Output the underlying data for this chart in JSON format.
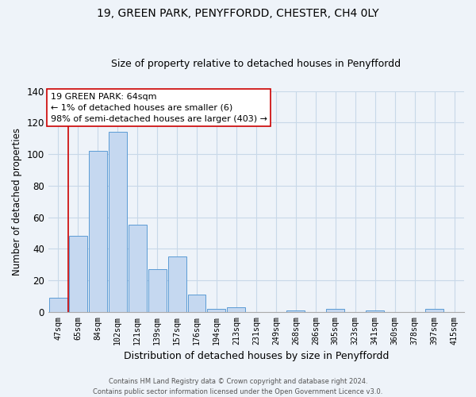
{
  "title": "19, GREEN PARK, PENYFFORDD, CHESTER, CH4 0LY",
  "subtitle": "Size of property relative to detached houses in Penyffordd",
  "xlabel": "Distribution of detached houses by size in Penyffordd",
  "ylabel": "Number of detached properties",
  "bar_labels": [
    "47sqm",
    "65sqm",
    "84sqm",
    "102sqm",
    "121sqm",
    "139sqm",
    "157sqm",
    "176sqm",
    "194sqm",
    "213sqm",
    "231sqm",
    "249sqm",
    "268sqm",
    "286sqm",
    "305sqm",
    "323sqm",
    "341sqm",
    "360sqm",
    "378sqm",
    "397sqm",
    "415sqm"
  ],
  "bar_values": [
    9,
    48,
    102,
    114,
    55,
    27,
    35,
    11,
    2,
    3,
    0,
    0,
    1,
    0,
    2,
    0,
    1,
    0,
    0,
    2,
    0
  ],
  "bar_color": "#c5d8f0",
  "bar_edge_color": "#5b9bd5",
  "highlight_color": "#cc0000",
  "ylim": [
    0,
    140
  ],
  "yticks": [
    0,
    20,
    40,
    60,
    80,
    100,
    120,
    140
  ],
  "annotation_title": "19 GREEN PARK: 64sqm",
  "annotation_line1": "← 1% of detached houses are smaller (6)",
  "annotation_line2": "98% of semi-detached houses are larger (403) →",
  "footer_line1": "Contains HM Land Registry data © Crown copyright and database right 2024.",
  "footer_line2": "Contains public sector information licensed under the Open Government Licence v3.0.",
  "bg_color": "#eef3f9",
  "grid_color": "#c8d8e8"
}
